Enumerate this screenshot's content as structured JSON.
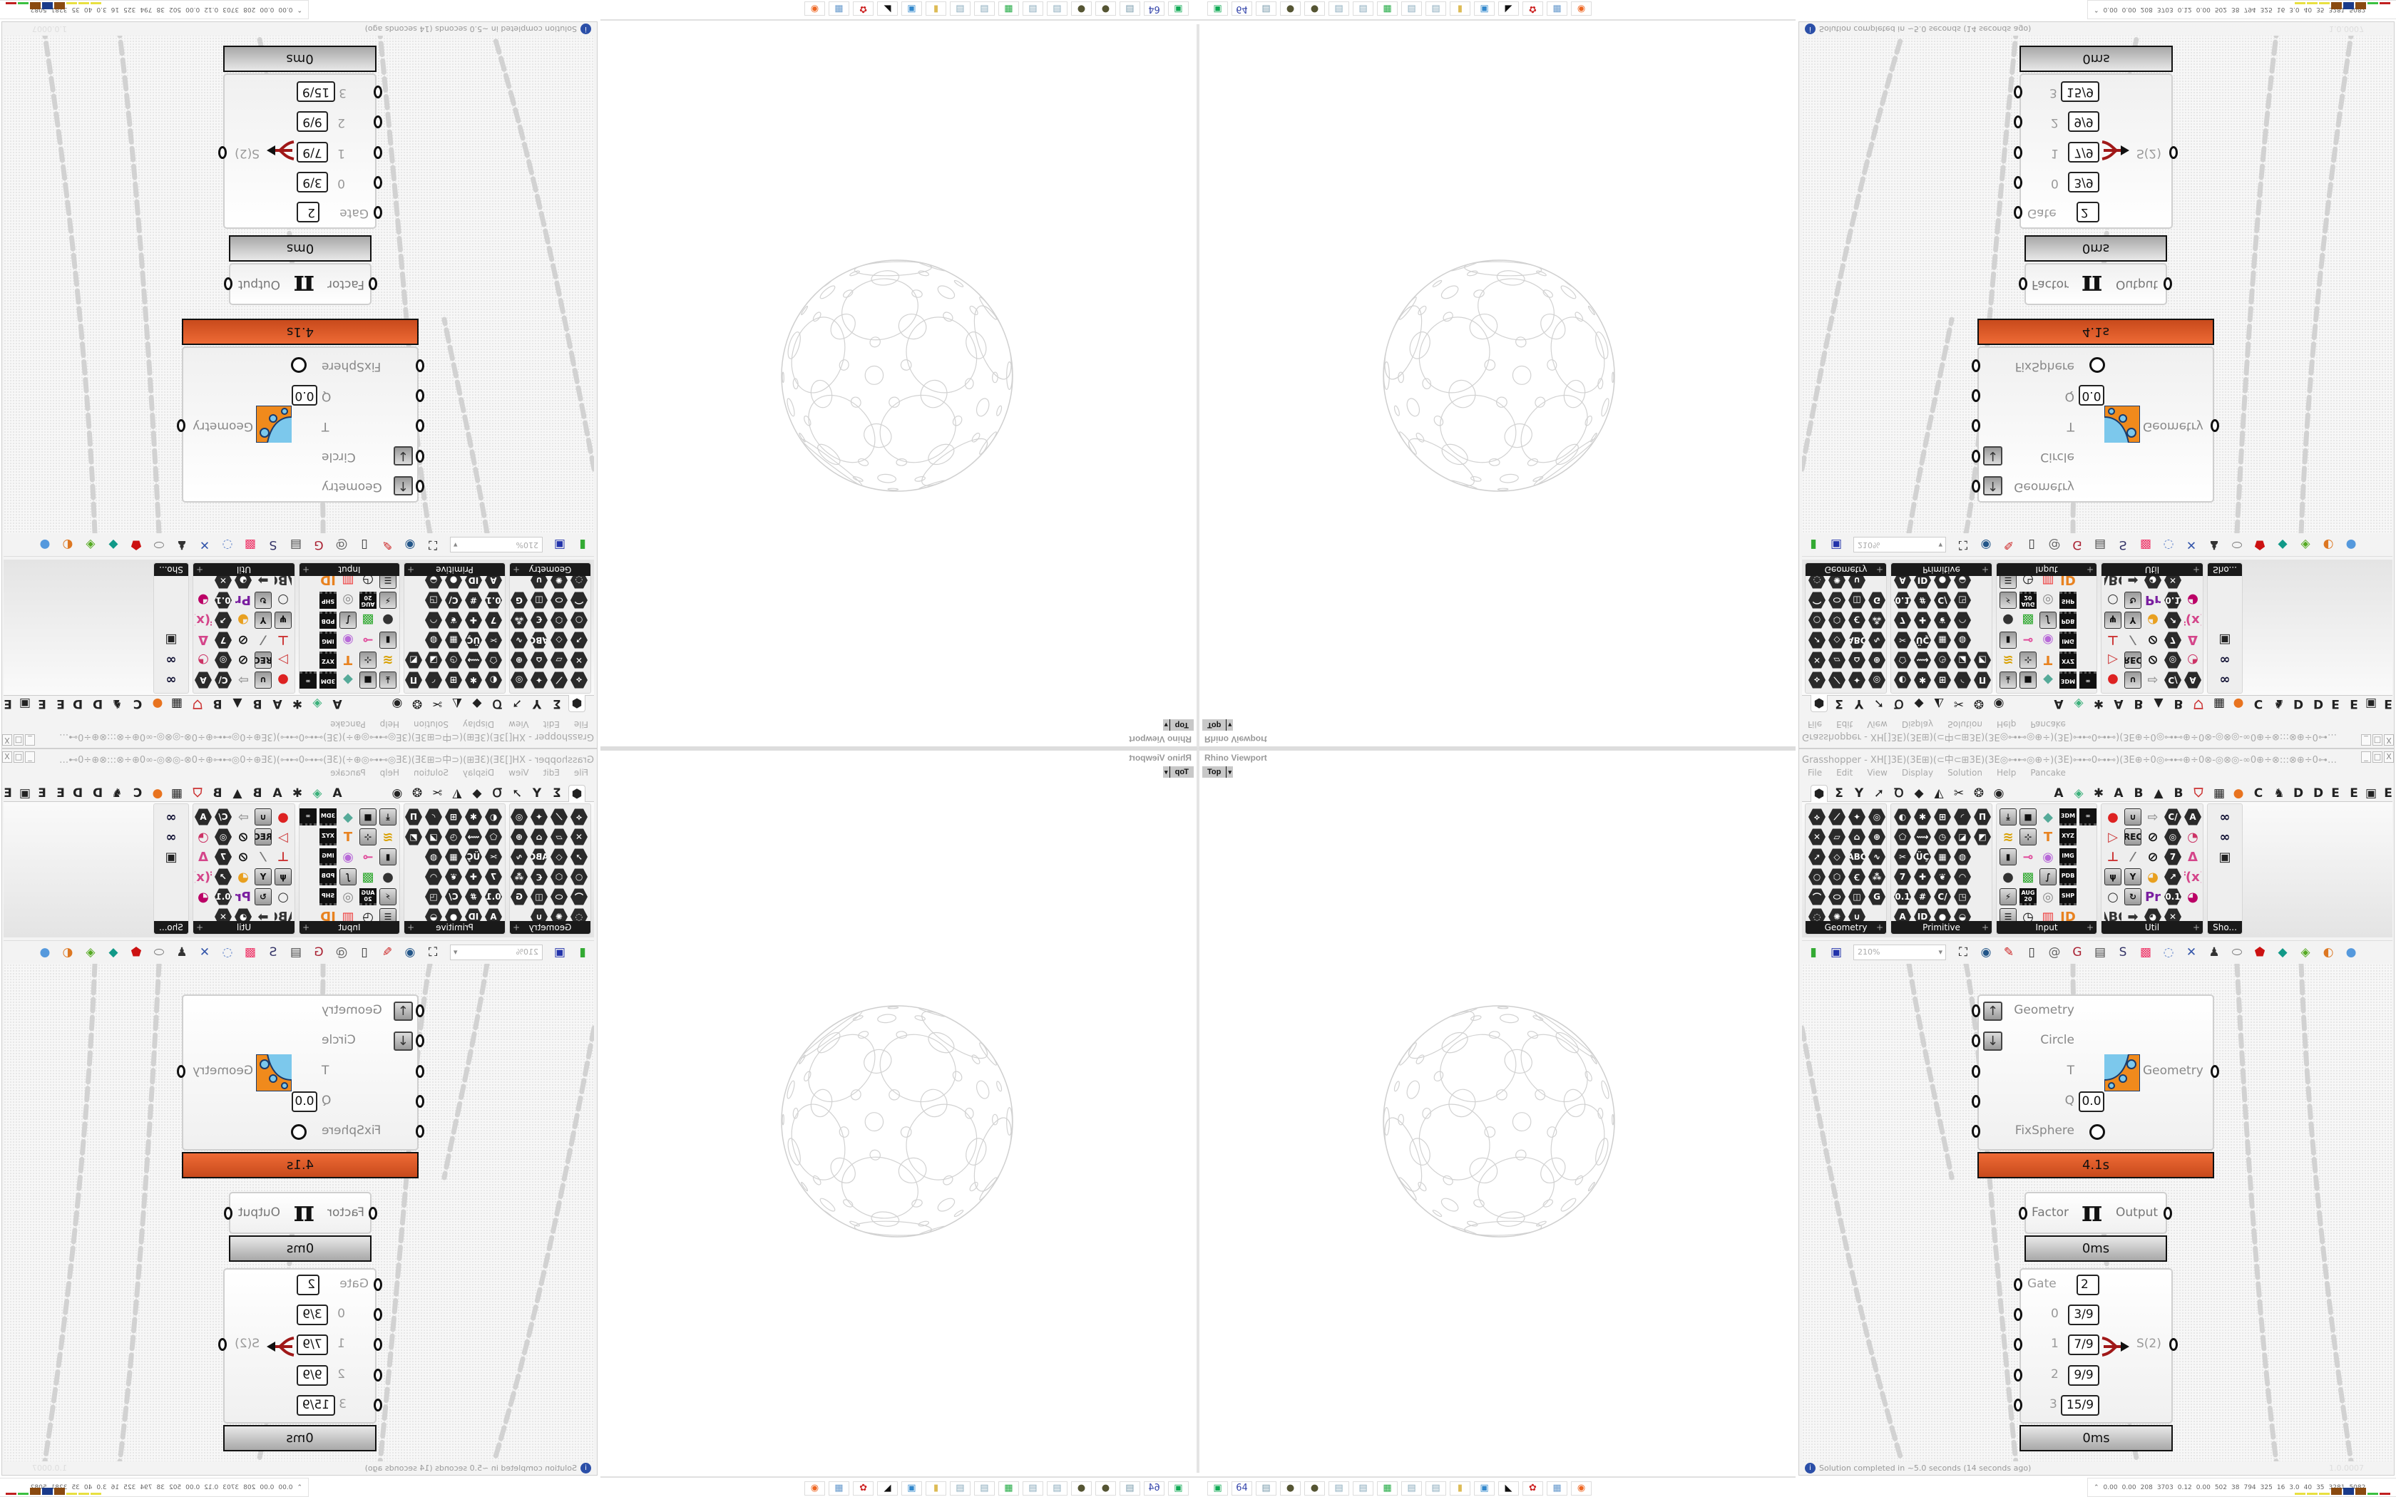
{
  "rhino": {
    "title": "Rhino Viewport",
    "view": "Top"
  },
  "grasshopper": {
    "title": "Grasshopper - XH[]3E)(3E⊞)(⊂中⊂⊞3E)(3E◎⊶⊷◎⊕÷)(3E)⊶⊷0⊶⊷)(3E⊕÷0◎⊶⊷⊕÷0⊗-◎⊗◎-∞0⊕÷⊗:::⊗⊕÷0⊶⊷3E][3E⊶⊷0⊕÷:::⊗⊕÷0⊗-◎⊗◎-∞0⊕÷⊶⊷◎⊕÷)(3E)⊶⊷0⊶⊷",
    "window_buttons": [
      "_",
      "□",
      "X"
    ],
    "menu": [
      "File",
      "Edit",
      "View",
      "Display",
      "Solution",
      "Help",
      "Pancake"
    ],
    "tabs": [
      {
        "g": "⬢",
        "selected": true
      },
      {
        "g": "Σ"
      },
      {
        "g": "Y"
      },
      {
        "g": "➚"
      },
      {
        "g": "Ꝺ"
      },
      {
        "g": "◆"
      },
      {
        "g": "◭"
      },
      {
        "g": "✂"
      },
      {
        "g": "❂"
      },
      {
        "g": "◉"
      },
      {
        "g": "A"
      },
      {
        "g": "◈",
        "c": "#3ab07a"
      },
      {
        "g": "✱"
      },
      {
        "g": "A"
      },
      {
        "g": "B"
      },
      {
        "g": "▲"
      },
      {
        "g": "B"
      },
      {
        "g": "⛉",
        "c": "#c33"
      },
      {
        "g": "▦"
      },
      {
        "g": "●",
        "c": "#e8731f"
      },
      {
        "g": "C"
      },
      {
        "g": "♞"
      },
      {
        "g": "D"
      },
      {
        "g": "D"
      },
      {
        "g": "E"
      },
      {
        "g": "E"
      },
      {
        "g": "▣"
      },
      {
        "g": "E"
      }
    ],
    "panels": [
      {
        "name": "Geometry",
        "cols": 4,
        "items": [
          {
            "g": "⟡",
            "k": "hex"
          },
          {
            "g": "⟋",
            "k": "hex"
          },
          {
            "g": "✦",
            "k": "hex"
          },
          {
            "g": "◎",
            "k": "hex"
          },
          {
            "g": "✕",
            "k": "hex"
          },
          {
            "g": "▱",
            "k": "hex"
          },
          {
            "g": "⌂",
            "k": "hex"
          },
          {
            "g": "⊕",
            "k": "hex"
          },
          {
            "g": "➚",
            "k": "hex"
          },
          {
            "g": "◇",
            "k": "hex"
          },
          {
            "g": "ABC",
            "k": "hex"
          },
          {
            "g": "∿",
            "k": "hex"
          },
          {
            "g": "○",
            "k": "hex"
          },
          {
            "g": "⬡",
            "k": "hex"
          },
          {
            "g": "Ꞓ",
            "k": "hex"
          },
          {
            "g": "⁂",
            "k": "hex"
          },
          {
            "g": "⌒",
            "k": "hex"
          },
          {
            "g": "⬭",
            "k": "hex"
          },
          {
            "g": "◫",
            "k": "hex"
          },
          {
            "g": "G",
            "k": "hex"
          },
          {
            "g": "◌",
            "k": "hex"
          },
          {
            "g": "✺",
            "k": "hex"
          },
          {
            "g": "∪",
            "k": "hex"
          }
        ]
      },
      {
        "name": "Primitive",
        "cols": 5,
        "items": [
          {
            "g": "◐",
            "k": "hex"
          },
          {
            "g": "✱",
            "k": "hex"
          },
          {
            "g": "⊞",
            "k": "hex"
          },
          {
            "g": "◜",
            "k": "hex"
          },
          {
            "g": "Π",
            "k": "hex"
          },
          {
            "g": "⬠",
            "k": "hex"
          },
          {
            "g": "⟿",
            "k": "hex"
          },
          {
            "g": "◷",
            "k": "hex"
          },
          {
            "g": "◪",
            "k": "hex"
          },
          {
            "g": "◩",
            "k": "hex"
          },
          {
            "g": "✂",
            "k": "hex"
          },
          {
            "g": "ÜÇ",
            "k": "hex"
          },
          {
            "g": "▦",
            "k": "hex"
          },
          {
            "g": "◍",
            "k": "hex"
          },
          {
            "g": "",
            "k": "none"
          },
          {
            "g": "7",
            "k": "hex"
          },
          {
            "g": "✚",
            "k": "hex"
          },
          {
            "g": "❦",
            "k": "hex"
          },
          {
            "g": "◠",
            "k": "hex"
          },
          {
            "g": "",
            "k": "none"
          },
          {
            "g": "0.1",
            "k": "hex"
          },
          {
            "g": "#",
            "k": "hex"
          },
          {
            "g": "C/",
            "k": "hex"
          },
          {
            "g": "◳",
            "k": "hex"
          },
          {
            "g": "",
            "k": "none"
          },
          {
            "g": "A",
            "k": "hex"
          },
          {
            "g": "ID",
            "k": "hex"
          },
          {
            "g": "●",
            "k": "hex"
          },
          {
            "g": "◒",
            "k": "hex"
          }
        ]
      },
      {
        "name": "Input",
        "cols": 5,
        "items": [
          {
            "g": "⤓",
            "k": "sq"
          },
          {
            "g": "■",
            "k": "sq"
          },
          {
            "g": "◆",
            "k": "col",
            "c": "#5a9"
          },
          {
            "g": "3DM",
            "k": "chip"
          },
          {
            "g": "∞",
            "k": "chip"
          },
          {
            "g": "≋",
            "k": "col",
            "c": "#d9a000"
          },
          {
            "g": "⊹",
            "k": "sq"
          },
          {
            "g": "T",
            "k": "col",
            "c": "#e8821f"
          },
          {
            "g": "XYZ",
            "k": "chip"
          },
          {
            "g": "",
            "k": "none"
          },
          {
            "g": "▮",
            "k": "sq"
          },
          {
            "g": "⊸",
            "k": "col",
            "c": "#e04a9a"
          },
          {
            "g": "◉",
            "k": "col",
            "c": "#b86ad8"
          },
          {
            "g": "IMG",
            "k": "chip"
          },
          {
            "g": "",
            "k": "none"
          },
          {
            "g": "●",
            "k": "col",
            "c": "#333"
          },
          {
            "g": "▩",
            "k": "col",
            "c": "#2ea82e"
          },
          {
            "g": "∫",
            "k": "sq"
          },
          {
            "g": "PDB",
            "k": "chip"
          },
          {
            "g": "",
            "k": "none"
          },
          {
            "g": "⚡",
            "k": "sq"
          },
          {
            "g": "AUG 20",
            "k": "chip"
          },
          {
            "g": "◎",
            "k": "col",
            "c": "#888"
          },
          {
            "g": "SHP",
            "k": "chip"
          },
          {
            "g": "",
            "k": "none"
          },
          {
            "g": "☰",
            "k": "sq"
          },
          {
            "g": "◷",
            "k": "col",
            "c": "#111"
          },
          {
            "g": "▥",
            "k": "col",
            "c": "#e33"
          },
          {
            "g": "ID",
            "k": "col",
            "c": "#e8821f"
          }
        ]
      },
      {
        "name": "Util",
        "cols": 5,
        "items": [
          {
            "g": "●",
            "k": "col",
            "c": "#d22"
          },
          {
            "g": "∪",
            "k": "sq"
          },
          {
            "g": "⇨",
            "k": "col",
            "c": "#999"
          },
          {
            "g": "C/",
            "k": "hex"
          },
          {
            "g": "A",
            "k": "hex"
          },
          {
            "g": "▷",
            "k": "col",
            "c": "#c33"
          },
          {
            "g": "REC",
            "k": "sq"
          },
          {
            "g": "⊘",
            "k": "col",
            "c": "#111"
          },
          {
            "g": "◎",
            "k": "hex"
          },
          {
            "g": "◔",
            "k": "col",
            "c": "#c36"
          },
          {
            "g": "⊥",
            "k": "col",
            "c": "#c33"
          },
          {
            "g": "⁄",
            "k": "col",
            "c": "#777"
          },
          {
            "g": "⊘",
            "k": "col",
            "c": "#111"
          },
          {
            "g": "7",
            "k": "hex"
          },
          {
            "g": "Δ",
            "k": "col",
            "c": "#d4458a"
          },
          {
            "g": "ψ",
            "k": "sq"
          },
          {
            "g": "Y",
            "k": "sq"
          },
          {
            "g": "◕",
            "k": "col",
            "c": "#e8a020"
          },
          {
            "g": "↗",
            "k": "hex"
          },
          {
            "g": "f(x)",
            "k": "col",
            "c": "#d4458a"
          },
          {
            "g": "○",
            "k": "col",
            "c": "#333"
          },
          {
            "g": "↻",
            "k": "sq"
          },
          {
            "g": "Pr",
            "k": "col",
            "c": "#7a1fa0"
          },
          {
            "g": "0.1",
            "k": "hex"
          },
          {
            "g": "◕",
            "k": "col",
            "c": "#b06"
          },
          {
            "g": "ABC",
            "k": "col",
            "c": "#333"
          },
          {
            "g": "➡",
            "k": "col",
            "c": "#333"
          },
          {
            "g": "◕",
            "k": "hex"
          },
          {
            "g": "✕",
            "k": "hex"
          }
        ]
      },
      {
        "name": "Sho...",
        "cols": 1,
        "items": [
          {
            "g": "∞",
            "k": "col",
            "c": "#113"
          },
          {
            "g": "∞",
            "k": "col",
            "c": "#113"
          },
          {
            "g": "▣",
            "k": "col",
            "c": "#222"
          }
        ]
      }
    ],
    "toolbar": {
      "left": [
        {
          "g": "▮",
          "c": "#3a3"
        },
        {
          "g": "▣",
          "c": "#23a"
        }
      ],
      "zoom": "210%",
      "right": [
        {
          "g": "⛶",
          "c": "#111"
        },
        {
          "g": "◉",
          "c": "#258"
        },
        {
          "g": "✎",
          "c": "#c22"
        },
        {
          "g": "▯",
          "c": "#333"
        },
        {
          "g": "@",
          "c": "#666"
        },
        {
          "g": "G",
          "c": "#a23"
        },
        {
          "g": "▤",
          "c": "#444"
        },
        {
          "g": "S",
          "c": "#336"
        },
        {
          "g": "▩",
          "c": "#e36"
        },
        {
          "g": "◌",
          "c": "#68c"
        },
        {
          "g": "✕",
          "c": "#35a"
        },
        {
          "g": "♟",
          "c": "#333"
        },
        {
          "g": "⬭",
          "c": "#777"
        },
        {
          "g": "⬟",
          "c": "#c11"
        },
        {
          "g": "◆",
          "c": "#198"
        },
        {
          "g": "◈",
          "c": "#5a2"
        },
        {
          "g": "◐",
          "c": "#d72"
        },
        {
          "g": "●",
          "c": "#59d"
        }
      ]
    },
    "components": {
      "kiss": {
        "inputs": [
          "Geometry",
          "Circle",
          "T",
          "Q",
          "FixSphere"
        ],
        "q_value": "0.0",
        "output": "Geometry",
        "time": "4.1s",
        "time_color": "#e05a2b"
      },
      "pi": {
        "input": "Factor",
        "symbol": "π",
        "output": "Output",
        "time": "0ms"
      },
      "gate": {
        "gate_label": "Gate",
        "gate_value": "2",
        "rows": [
          {
            "i": "0",
            "v": "3/9"
          },
          {
            "i": "1",
            "v": "7/9"
          },
          {
            "i": "2",
            "v": "9/9"
          },
          {
            "i": "3",
            "v": "15/9"
          }
        ],
        "output": "S(2)",
        "time": "0ms"
      }
    },
    "status": "Solution completed in ~5.0 seconds (14 seconds ago)",
    "version": "1.0.0007"
  },
  "taskbar": [
    {
      "g": "▣",
      "c": "#1a5"
    },
    {
      "g": "64",
      "c": "#34a"
    },
    {
      "g": "▤",
      "c": "#79a"
    },
    {
      "g": "●",
      "c": "#553"
    },
    {
      "g": "●",
      "c": "#553"
    },
    {
      "g": "▤",
      "c": "#8ab"
    },
    {
      "g": "▤",
      "c": "#8ab"
    },
    {
      "g": "▦",
      "c": "#2a4"
    },
    {
      "g": "▤",
      "c": "#8ab"
    },
    {
      "g": "▤",
      "c": "#8ab"
    },
    {
      "g": "▮",
      "c": "#db5"
    },
    {
      "g": "▣",
      "c": "#38c"
    },
    {
      "g": "◣",
      "c": "#111"
    },
    {
      "g": "✿",
      "c": "#c22"
    },
    {
      "g": "▦",
      "c": "#69c"
    },
    {
      "g": "◉",
      "c": "#e62"
    }
  ],
  "perf": {
    "values": [
      "0.00",
      "0.00",
      "208",
      "3703",
      "0.12",
      "0.00",
      "502",
      "38",
      "794",
      "325",
      "16",
      "3.0",
      "40",
      "35",
      "3281",
      "5082"
    ],
    "bar_colors": [
      "#e8e040",
      "#e8e040",
      "#e8e040",
      "#8a4a10",
      "#1a3a8a",
      "#8a4a10",
      "#3ac040",
      "#c02020"
    ]
  }
}
